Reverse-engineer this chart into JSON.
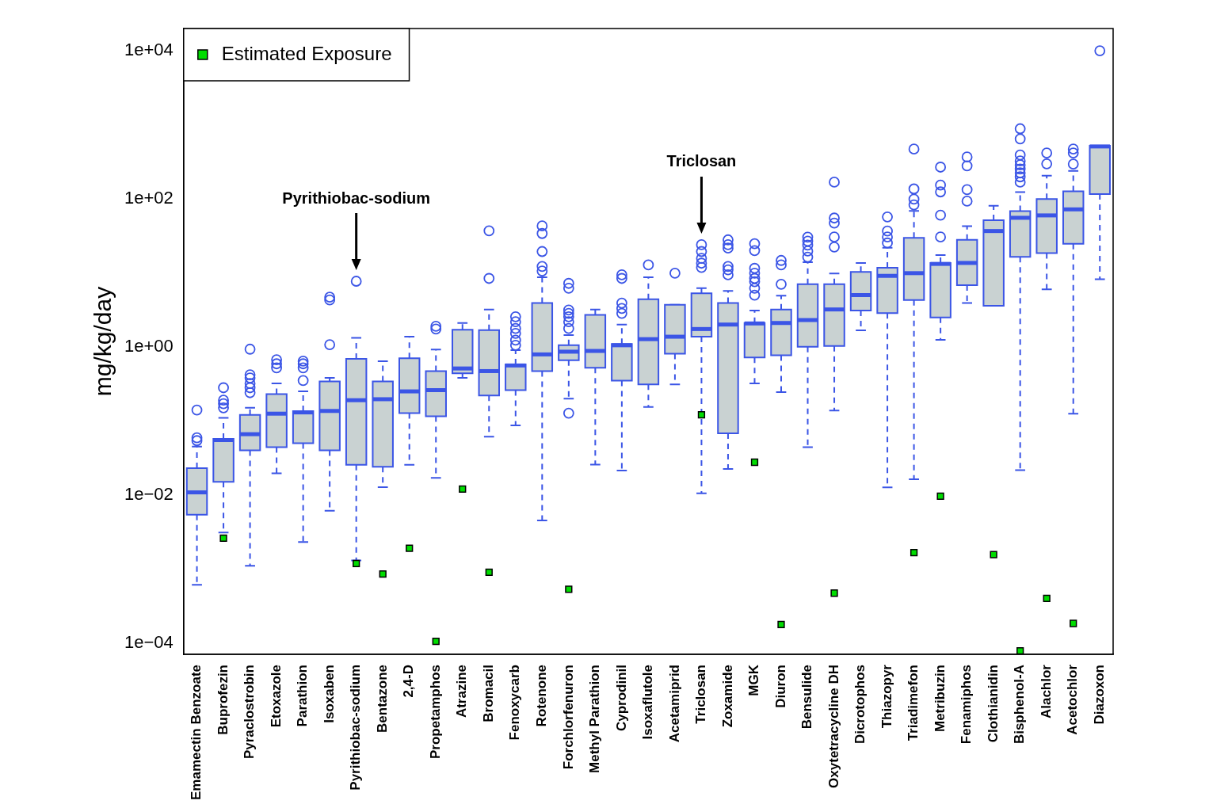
{
  "chart_data": {
    "type": "box",
    "ylabel": "mg/kg/day",
    "categories": [
      "Emamectin Benzoate",
      "Buprofezin",
      "Pyraclostrobin",
      "Etoxazole",
      "Parathion",
      "Isoxaben",
      "Pyrithiobac-sodium",
      "Bentazone",
      "2,4-D",
      "Propetamphos",
      "Atrazine",
      "Bromacil",
      "Fenoxycarb",
      "Rotenone",
      "Forchlorfenuron",
      "Methyl Parathion",
      "Cyprodinil",
      "Isoxaflutole",
      "Acetamiprid",
      "Triclosan",
      "Zoxamide",
      "MGK",
      "Diuron",
      "Bensulide",
      "Oxytetracycline DH",
      "Dicrotophos",
      "Thiazopyr",
      "Triadimefon",
      "Metribuzin",
      "Fenamiphos",
      "Clothianidin",
      "Bisphenol-A",
      "Alachlor",
      "Acetochlor",
      "Diazoxon"
    ],
    "log": "y",
    "ylim": [
      7e-05,
      20000
    ],
    "yticks": [
      {
        "value": 0.0001,
        "label": "1e−04"
      },
      {
        "value": 0.01,
        "label": "1e−02"
      },
      {
        "value": 1,
        "label": "1e+00"
      },
      {
        "value": 100,
        "label": "1e+02"
      },
      {
        "value": 10000,
        "label": "1e+04"
      }
    ],
    "legend": "top left",
    "series": [
      {
        "type": "box",
        "color": "#c9d2d2",
        "boxes": [
          {
            "low": 0.00061,
            "q1": 0.0054,
            "median": 0.0108,
            "q3": 0.023,
            "high": 0.045,
            "outliers": [
              0.054,
              0.059,
              0.14
            ]
          },
          {
            "low": 0.0031,
            "q1": 0.015,
            "median": 0.055,
            "q3": 0.057,
            "high": 0.11,
            "outliers": [
              0.15,
              0.17,
              0.19,
              0.28
            ]
          },
          {
            "low": 0.0011,
            "q1": 0.04,
            "median": 0.066,
            "q3": 0.12,
            "high": 0.15,
            "outliers": [
              0.24,
              0.28,
              0.32,
              0.38,
              0.42,
              0.93
            ]
          },
          {
            "low": 0.0195,
            "q1": 0.044,
            "median": 0.125,
            "q3": 0.23,
            "high": 0.32,
            "outliers": [
              0.52,
              0.59,
              0.67
            ]
          },
          {
            "low": 0.0023,
            "q1": 0.05,
            "median": 0.13,
            "q3": 0.135,
            "high": 0.25,
            "outliers": [
              0.35,
              0.52,
              0.59,
              0.64
            ]
          },
          {
            "low": 0.0061,
            "q1": 0.04,
            "median": 0.136,
            "q3": 0.34,
            "high": 0.38,
            "outliers": [
              1.07,
              4.3,
              4.7
            ]
          },
          {
            "low": 0.0013,
            "q1": 0.0255,
            "median": 0.19,
            "q3": 0.69,
            "high": 1.32,
            "outliers": [
              7.7
            ]
          },
          {
            "low": 0.0127,
            "q1": 0.024,
            "median": 0.196,
            "q3": 0.34,
            "high": 0.64
          },
          {
            "low": 0.0255,
            "q1": 0.127,
            "median": 0.25,
            "q3": 0.7,
            "high": 1.37
          },
          {
            "low": 0.017,
            "q1": 0.115,
            "median": 0.26,
            "q3": 0.47,
            "high": 0.92,
            "outliers": [
              1.74,
              1.9
            ]
          },
          {
            "low": 0.38,
            "q1": 0.44,
            "median": 0.51,
            "q3": 1.7,
            "high": 2.1
          },
          {
            "low": 0.061,
            "q1": 0.22,
            "median": 0.47,
            "q3": 1.68,
            "high": 3.2,
            "outliers": [
              8.4,
              37
            ]
          },
          {
            "low": 0.087,
            "q1": 0.26,
            "median": 0.56,
            "q3": 0.58,
            "high": 0.9,
            "outliers": [
              1.05,
              1.23,
              1.52,
              1.77,
              2.18,
              2.55
            ]
          },
          {
            "low": 0.0045,
            "q1": 0.47,
            "median": 0.79,
            "q3": 3.9,
            "high": 8.7,
            "outliers": [
              10.6,
              12.2,
              19.4,
              34,
              43
            ]
          },
          {
            "low": 0.2,
            "q1": 0.66,
            "median": 0.86,
            "q3": 1.05,
            "high": 1.44,
            "outliers": [
              0.127,
              1.77,
              2.18,
              2.55,
              2.83,
              3.14,
              6.2,
              7.2
            ]
          },
          {
            "low": 0.0256,
            "q1": 0.52,
            "median": 0.88,
            "q3": 2.7,
            "high": 3.2
          },
          {
            "low": 0.0213,
            "q1": 0.35,
            "median": 1.05,
            "q3": 1.09,
            "high": 2.0,
            "outliers": [
              2.83,
              3.3,
              3.9,
              8.4,
              9.4
            ]
          },
          {
            "low": 0.154,
            "q1": 0.31,
            "median": 1.27,
            "q3": 4.4,
            "high": 8.7,
            "outliers": [
              12.8
            ]
          },
          {
            "low": 0.31,
            "q1": 0.81,
            "median": 1.37,
            "q3": 3.7,
            "high": 3.7,
            "outliers": [
              9.9
            ]
          },
          {
            "low": 0.0105,
            "q1": 1.37,
            "median": 1.74,
            "q3": 5.3,
            "high": 6.2,
            "outliers": [
              11.8,
              13.5,
              15.7,
              19.4,
              24
            ]
          },
          {
            "low": 0.0224,
            "q1": 0.068,
            "median": 2.0,
            "q3": 3.9,
            "high": 5.7,
            "outliers": [
              9.4,
              11,
              12.2,
              21.6,
              24,
              27.9
            ]
          },
          {
            "low": 0.32,
            "q1": 0.72,
            "median": 2.07,
            "q3": 2.1,
            "high": 3.1,
            "outliers": [
              5.0,
              6.2,
              7.6,
              8.4,
              9.9,
              11.5,
              20,
              24.7
            ]
          },
          {
            "low": 0.245,
            "q1": 0.77,
            "median": 2.1,
            "q3": 3.2,
            "high": 4.9,
            "outliers": [
              7.0,
              12.8,
              14.7
            ]
          },
          {
            "low": 0.044,
            "q1": 1.0,
            "median": 2.3,
            "q3": 7.0,
            "high": 13.9,
            "outliers": [
              16.3,
              19.7,
              23.7,
              26.8,
              30.4
            ]
          },
          {
            "low": 0.138,
            "q1": 1.03,
            "median": 3.2,
            "q3": 7.0,
            "high": 9.8,
            "outliers": [
              22.3,
              30.5,
              47,
              55,
              168
            ]
          },
          {
            "low": 1.67,
            "q1": 3.1,
            "median": 5.0,
            "q3": 10.3,
            "high": 13.6
          },
          {
            "low": 0.0126,
            "q1": 2.86,
            "median": 9.1,
            "q3": 11.7,
            "high": 21.8,
            "outliers": [
              25.3,
              30.5,
              36.7,
              56.9
            ]
          },
          {
            "low": 0.0162,
            "q1": 4.3,
            "median": 9.9,
            "q3": 29.7,
            "high": 68.6,
            "outliers": [
              83,
              99,
              136,
              470
            ]
          },
          {
            "low": 1.24,
            "q1": 2.5,
            "median": 13.2,
            "q3": 13.6,
            "high": 17.4,
            "outliers": [
              30.5,
              60,
              124,
              153,
              268
            ]
          },
          {
            "low": 3.9,
            "q1": 6.8,
            "median": 13.6,
            "q3": 27.9,
            "high": 42.7,
            "outliers": [
              93,
              133,
              279,
              367
            ]
          },
          {
            "low": 3.58,
            "q1": 3.58,
            "median": 36.7,
            "q3": 51.5,
            "high": 80.6
          },
          {
            "low": 0.0216,
            "q1": 16.4,
            "median": 55.4,
            "q3": 68,
            "high": 123,
            "outliers": [
              168,
              198,
              224,
              253,
              287,
              325,
              391,
              645,
              885
            ]
          },
          {
            "low": 6.0,
            "q1": 18.5,
            "median": 59.7,
            "q3": 99.5,
            "high": 205,
            "outliers": [
              297,
              417
            ]
          },
          {
            "low": 0.125,
            "q1": 24.7,
            "median": 72,
            "q3": 126,
            "high": 238,
            "outliers": [
              295,
              417,
              470
            ]
          },
          {
            "low": 8.2,
            "q1": 116,
            "median": 510,
            "q3": 522,
            "high": 522,
            "outliers": [
              10000
            ]
          }
        ]
      },
      {
        "type": "scatter",
        "name": "Estimated Exposure",
        "color": "#00dd00",
        "marker": "square",
        "x": [
          "Emamectin Benzoate",
          "Buprofezin",
          "Pyraclostrobin",
          "Etoxazole",
          "Parathion",
          "Isoxaben",
          "Pyrithiobac-sodium",
          "Bentazone",
          "2,4-D",
          "Propetamphos",
          "Atrazine",
          "Bromacil",
          "Fenoxycarb",
          "Rotenone",
          "Forchlorfenuron",
          "Methyl Parathion",
          "Cyprodinil",
          "Isoxaflutole",
          "Acetamiprid",
          "Triclosan",
          "Zoxamide",
          "MGK",
          "Diuron",
          "Bensulide",
          "Oxytetracycline DH",
          "Dicrotophos",
          "Thiazopyr",
          "Triadimefon",
          "Metribuzin",
          "Fenamiphos",
          "Clothianidin",
          "Bisphenol-A",
          "Alachlor",
          "Acetochlor",
          "Diazoxon"
        ],
        "values": [
          null,
          0.0026,
          null,
          null,
          null,
          null,
          0.00118,
          0.00085,
          0.0019,
          0.000105,
          0.012,
          0.0009,
          null,
          null,
          0.00053,
          null,
          null,
          null,
          null,
          0.121,
          null,
          0.0276,
          0.000177,
          null,
          0.00047,
          null,
          null,
          0.00166,
          0.0096,
          null,
          0.00156,
          7.8e-05,
          0.0004,
          0.000183,
          null
        ]
      }
    ],
    "annotations": [
      "Pyrithiobac-sodium",
      "Triclosan"
    ]
  }
}
